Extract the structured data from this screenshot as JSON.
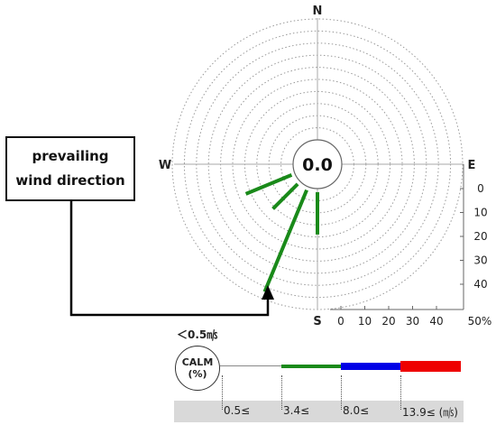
{
  "chart_data": {
    "type": "wind-rose",
    "cardinals": {
      "n": "N",
      "e": "E",
      "s": "S",
      "w": "W"
    },
    "calm_value": "0.0",
    "radial_scale_ticks": [
      "0",
      "10",
      "20",
      "30",
      "40"
    ],
    "x_ticks": [
      "0",
      "10",
      "20",
      "30",
      "40"
    ],
    "max_percent_label": "50%",
    "r_max": 50,
    "rings": [
      5,
      10,
      15,
      20,
      25,
      30,
      35,
      40,
      45,
      50
    ],
    "petals": [
      {
        "direction_deg": 202.5,
        "percent": 47,
        "color": "#1a8a1a"
      },
      {
        "direction_deg": 225,
        "percent": 16,
        "color": "#1a8a1a"
      },
      {
        "direction_deg": 247.5,
        "percent": 22,
        "color": "#1a8a1a"
      },
      {
        "direction_deg": 180,
        "percent": 19,
        "color": "#1a8a1a"
      }
    ],
    "callout": {
      "line1": "prevailing",
      "line2": "wind direction"
    },
    "legend": {
      "calm_threshold": "＜0.5㎧",
      "calm_label": "CALM",
      "calm_unit": "(%)",
      "speed_bins": [
        "0.5≤",
        "3.4≤",
        "8.0≤",
        "13.9≤ (㎧)"
      ],
      "colors": [
        "#ffffff",
        "#1a8a1a",
        "#0000e6",
        "#ee0000"
      ]
    }
  }
}
